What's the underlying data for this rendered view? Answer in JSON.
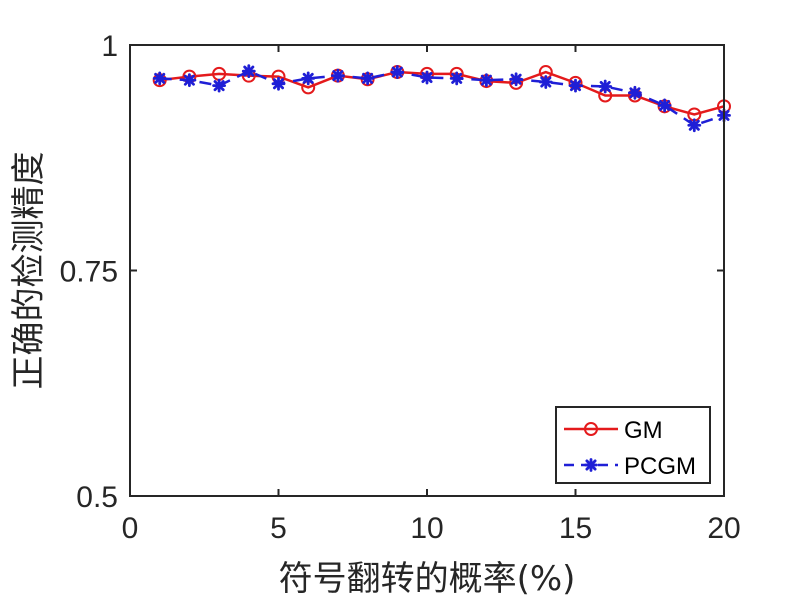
{
  "chart_data": {
    "type": "line",
    "title": "",
    "xlabel": "符号翻转的概率(%)",
    "ylabel": "正确的检测精度",
    "xlim": [
      0,
      20
    ],
    "ylim": [
      0.5,
      1
    ],
    "xticks": [
      0,
      5,
      10,
      15,
      20
    ],
    "xtick_labels": [
      "0",
      "5",
      "10",
      "15",
      "20"
    ],
    "yticks": [
      0.5,
      0.75,
      1
    ],
    "ytick_labels": [
      "0.5",
      "0.75",
      "1"
    ],
    "grid": false,
    "legend_position": "bottom-right",
    "x": [
      1,
      2,
      3,
      4,
      5,
      6,
      7,
      8,
      9,
      10,
      11,
      12,
      13,
      14,
      15,
      16,
      17,
      18,
      19,
      20
    ],
    "series": [
      {
        "name": "GM",
        "color": "#e41a1c",
        "line_style": "solid",
        "marker": "circle",
        "values": [
          0.961,
          0.965,
          0.968,
          0.966,
          0.965,
          0.953,
          0.966,
          0.962,
          0.97,
          0.968,
          0.968,
          0.96,
          0.958,
          0.97,
          0.958,
          0.944,
          0.944,
          0.932,
          0.923,
          0.932
        ]
      },
      {
        "name": "PCGM",
        "color": "#1f1fd6",
        "line_style": "dashed",
        "marker": "asterisk",
        "values": [
          0.963,
          0.961,
          0.955,
          0.971,
          0.957,
          0.963,
          0.966,
          0.963,
          0.97,
          0.964,
          0.963,
          0.961,
          0.962,
          0.959,
          0.955,
          0.954,
          0.947,
          0.933,
          0.911,
          0.922
        ]
      }
    ]
  }
}
